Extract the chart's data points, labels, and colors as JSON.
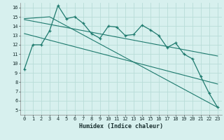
{
  "xlabel": "Humidex (Indice chaleur)",
  "background_color": "#d7f0ee",
  "grid_color": "#b8dcd8",
  "line_color": "#1e7a6e",
  "xlim": [
    -0.5,
    23.5
  ],
  "ylim": [
    4.5,
    16.5
  ],
  "yticks": [
    5,
    6,
    7,
    8,
    9,
    10,
    11,
    12,
    13,
    14,
    15,
    16
  ],
  "xticks": [
    0,
    1,
    2,
    3,
    4,
    5,
    6,
    7,
    8,
    9,
    10,
    11,
    12,
    13,
    14,
    15,
    16,
    17,
    18,
    19,
    20,
    21,
    22,
    23
  ],
  "line1_x": [
    0,
    1,
    2,
    3,
    4,
    5,
    6,
    7,
    8,
    9,
    10,
    11,
    12,
    13,
    14,
    15,
    16,
    17,
    18,
    19,
    20,
    21,
    22,
    23
  ],
  "line1_y": [
    9.4,
    12.0,
    12.0,
    13.5,
    16.2,
    14.8,
    15.0,
    14.3,
    13.2,
    12.7,
    14.0,
    13.9,
    13.0,
    13.1,
    14.1,
    13.6,
    13.0,
    11.7,
    12.2,
    11.0,
    10.5,
    8.6,
    6.8,
    5.3
  ],
  "line2_x": [
    0,
    3,
    23
  ],
  "line2_y": [
    14.8,
    15.0,
    5.3
  ],
  "line3_x": [
    0,
    23
  ],
  "line3_y": [
    14.7,
    10.8
  ],
  "line4_x": [
    0,
    23
  ],
  "line4_y": [
    13.2,
    7.8
  ]
}
